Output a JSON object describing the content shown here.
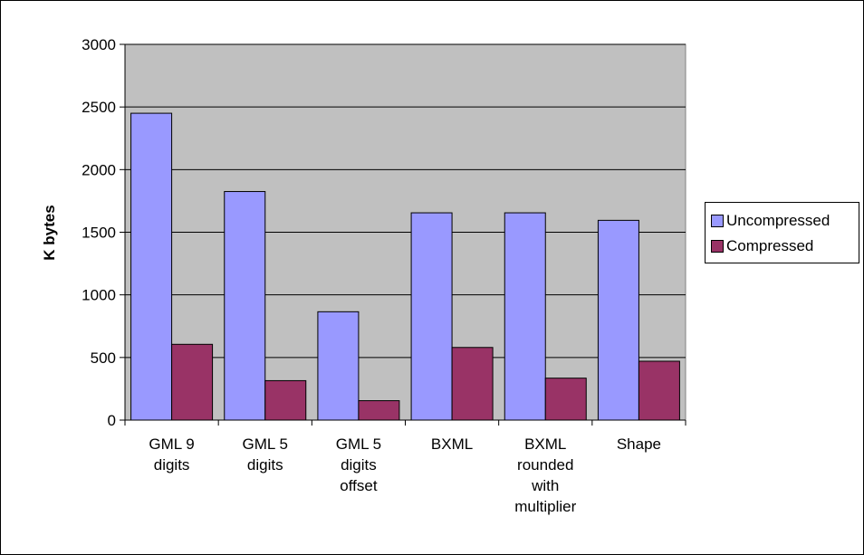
{
  "chart_data": {
    "type": "bar",
    "title": "",
    "xlabel": "",
    "ylabel": "K bytes",
    "ylim": [
      0,
      3000
    ],
    "yticks": [
      0,
      500,
      1000,
      1500,
      2000,
      2500,
      3000
    ],
    "grid": true,
    "legend_position": "right",
    "plot_background": "#C0C0C0",
    "categories": [
      [
        "GML 9",
        "digits"
      ],
      [
        "GML 5",
        "digits"
      ],
      [
        "GML 5",
        "digits",
        "offset"
      ],
      [
        "BXML"
      ],
      [
        "BXML",
        "rounded",
        "with",
        "multiplier"
      ],
      [
        "Shape"
      ]
    ],
    "series": [
      {
        "name": "Uncompressed",
        "color": "#9999FF",
        "values": [
          2450,
          1825,
          865,
          1655,
          1655,
          1595
        ]
      },
      {
        "name": "Compressed",
        "color": "#993366",
        "values": [
          605,
          315,
          155,
          580,
          335,
          470
        ]
      }
    ]
  }
}
